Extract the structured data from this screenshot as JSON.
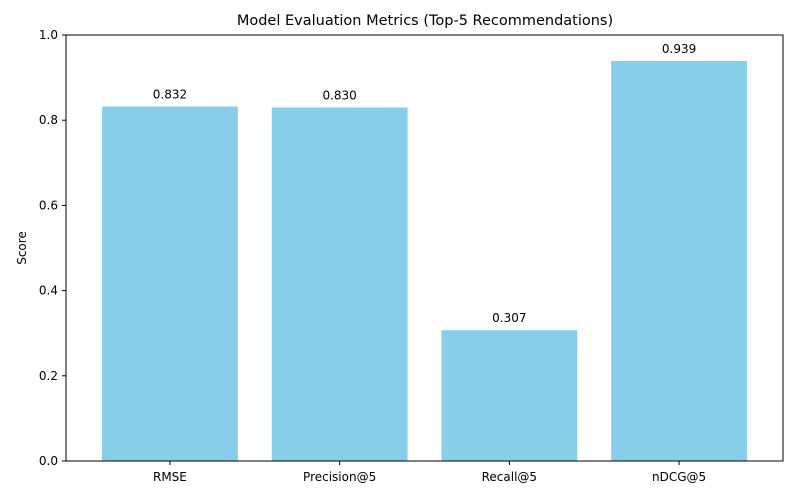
{
  "chart_data": {
    "type": "bar",
    "title": "Model Evaluation Metrics (Top-5 Recommendations)",
    "xlabel": "",
    "ylabel": "Score",
    "categories": [
      "RMSE",
      "Precision@5",
      "Recall@5",
      "nDCG@5"
    ],
    "values": [
      0.832,
      0.83,
      0.307,
      0.939
    ],
    "value_labels": [
      "0.832",
      "0.830",
      "0.307",
      "0.939"
    ],
    "ylim": [
      0,
      1.0
    ],
    "yticks": [
      0.0,
      0.2,
      0.4,
      0.6,
      0.8,
      1.0
    ],
    "ytick_labels": [
      "0.0",
      "0.2",
      "0.4",
      "0.6",
      "0.8",
      "1.0"
    ],
    "grid": false,
    "legend": "none",
    "bar_color": "#87ceeb",
    "axis_color": "#000000"
  }
}
